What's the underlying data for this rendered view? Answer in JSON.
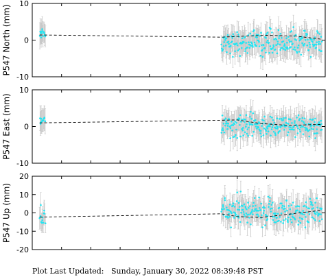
{
  "footer": {
    "label": "Plot Last Updated:",
    "timestamp": "Sunday, January 30, 2022 08:39:48 PST"
  },
  "colors": {
    "points": "#22e5f2",
    "error_bars": "#c8c8c8",
    "trend": "#000000",
    "frame": "#000000"
  },
  "chart_data": [
    {
      "type": "scatter",
      "ylabel": "P547 North (mm)",
      "ylim": [
        -10,
        10
      ],
      "yticks": [
        -10,
        0,
        10
      ],
      "xlim": [
        0,
        100
      ],
      "point_sigma": 3,
      "clusters": [
        {
          "x_range": [
            2.5,
            4.5
          ],
          "center": 2.0,
          "spread": 0.8,
          "count": 14
        },
        {
          "x_range": [
            64.5,
            99
          ],
          "center": -0.7,
          "spread": 1.6,
          "count": 220
        }
      ],
      "trend": [
        [
          2.5,
          1.4
        ],
        [
          64.5,
          0.8
        ],
        [
          70,
          1.0
        ],
        [
          80,
          1.3
        ],
        [
          90,
          1.1
        ],
        [
          99,
          0.2
        ]
      ]
    },
    {
      "type": "scatter",
      "ylabel": "P547 East (mm)",
      "ylim": [
        -10,
        10
      ],
      "yticks": [
        -10,
        0,
        10
      ],
      "xlim": [
        0,
        100
      ],
      "point_sigma": 3,
      "clusters": [
        {
          "x_range": [
            2.5,
            4.5
          ],
          "center": 1.8,
          "spread": 0.5,
          "count": 12
        },
        {
          "x_range": [
            64.5,
            99
          ],
          "center": 0.0,
          "spread": 1.5,
          "count": 220
        }
      ],
      "trend": [
        [
          2.5,
          1.0
        ],
        [
          64.5,
          1.7
        ],
        [
          70,
          1.8
        ],
        [
          78,
          0.8
        ],
        [
          88,
          0.3
        ],
        [
          99,
          0.6
        ]
      ]
    },
    {
      "type": "scatter",
      "ylabel": "P547 Up (mm)",
      "ylim": [
        -20,
        20
      ],
      "yticks": [
        -20,
        -10,
        0,
        10,
        20
      ],
      "xlim": [
        0,
        100
      ],
      "point_sigma": 6,
      "clusters": [
        {
          "x_range": [
            2.5,
            4.5
          ],
          "center": -2.0,
          "spread": 2.5,
          "count": 12
        },
        {
          "x_range": [
            64.5,
            99
          ],
          "center": 0.5,
          "spread": 4.0,
          "count": 220
        }
      ],
      "trend": [
        [
          2.5,
          -2.3
        ],
        [
          64.5,
          -0.5
        ],
        [
          70,
          -2.0
        ],
        [
          78,
          -2.5
        ],
        [
          86,
          -1.0
        ],
        [
          99,
          1.5
        ]
      ]
    }
  ]
}
